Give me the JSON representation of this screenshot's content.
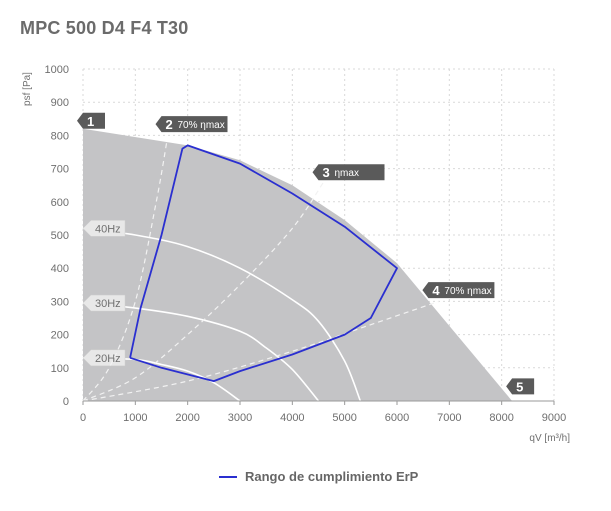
{
  "title": "MPC 500 D4 F4 T30",
  "chart_data": {
    "type": "line",
    "xlabel": "qV [m³/h]",
    "ylabel": "psf [Pa]",
    "xlim": [
      0,
      9000
    ],
    "ylim": [
      0,
      1000
    ],
    "xticks": [
      0,
      1000,
      2000,
      3000,
      4000,
      5000,
      6000,
      7000,
      8000,
      9000
    ],
    "yticks": [
      0,
      100,
      200,
      300,
      400,
      500,
      600,
      700,
      800,
      900,
      1000
    ],
    "grid": true,
    "legend_position": "bottom-center",
    "region_outline": [
      [
        0,
        820
      ],
      [
        2000,
        770
      ],
      [
        3000,
        725
      ],
      [
        4000,
        650
      ],
      [
        5000,
        545
      ],
      [
        6000,
        415
      ],
      [
        8200,
        0
      ],
      [
        0,
        0
      ]
    ],
    "speed_curves": [
      {
        "name": "40Hz",
        "points": [
          [
            0,
            520
          ],
          [
            1000,
            500
          ],
          [
            2000,
            465
          ],
          [
            3000,
            400
          ],
          [
            4000,
            305
          ],
          [
            4500,
            240
          ],
          [
            5000,
            120
          ],
          [
            5300,
            0
          ]
        ]
      },
      {
        "name": "30Hz",
        "points": [
          [
            0,
            295
          ],
          [
            1000,
            280
          ],
          [
            2000,
            255
          ],
          [
            3000,
            210
          ],
          [
            3500,
            160
          ],
          [
            4000,
            95
          ],
          [
            4500,
            0
          ]
        ]
      },
      {
        "name": "20Hz",
        "points": [
          [
            0,
            130
          ],
          [
            1000,
            125
          ],
          [
            1500,
            110
          ],
          [
            2000,
            90
          ],
          [
            2500,
            55
          ],
          [
            3000,
            0
          ]
        ]
      }
    ],
    "efficiency_lines": [
      {
        "label": "70% ηmax",
        "points": [
          [
            0,
            0
          ],
          [
            500,
            100
          ],
          [
            1000,
            300
          ],
          [
            1400,
            600
          ],
          [
            1600,
            780
          ]
        ]
      },
      {
        "label": "ηmax",
        "points": [
          [
            0,
            0
          ],
          [
            1000,
            70
          ],
          [
            2000,
            200
          ],
          [
            3000,
            350
          ],
          [
            4000,
            520
          ],
          [
            4600,
            660
          ]
        ]
      },
      {
        "label": "70% ηmax",
        "points": [
          [
            0,
            0
          ],
          [
            2000,
            60
          ],
          [
            4000,
            150
          ],
          [
            5500,
            230
          ],
          [
            6800,
            300
          ]
        ]
      }
    ],
    "erp_region": [
      [
        900,
        130
      ],
      [
        1100,
        280
      ],
      [
        1500,
        500
      ],
      [
        1900,
        760
      ],
      [
        2000,
        770
      ],
      [
        3000,
        715
      ],
      [
        4000,
        625
      ],
      [
        5000,
        525
      ],
      [
        6000,
        400
      ],
      [
        5500,
        250
      ],
      [
        5000,
        200
      ],
      [
        4000,
        140
      ],
      [
        3000,
        90
      ],
      [
        2500,
        60
      ],
      [
        1500,
        100
      ],
      [
        900,
        130
      ]
    ],
    "series": [
      {
        "name": "Rango de cumplimiento ErP",
        "color": "#2a2fd0"
      }
    ],
    "point_markers": [
      {
        "label": "1",
        "x": 0,
        "y": 820
      },
      {
        "label": "2",
        "sub": "70% ηmax",
        "x": 1500,
        "y": 810
      },
      {
        "label": "3",
        "sub": "ηmax",
        "x": 4500,
        "y": 665
      },
      {
        "label": "4",
        "sub": "70% ηmax",
        "x": 6600,
        "y": 310
      },
      {
        "label": "5",
        "x": 8200,
        "y": 20
      }
    ]
  }
}
